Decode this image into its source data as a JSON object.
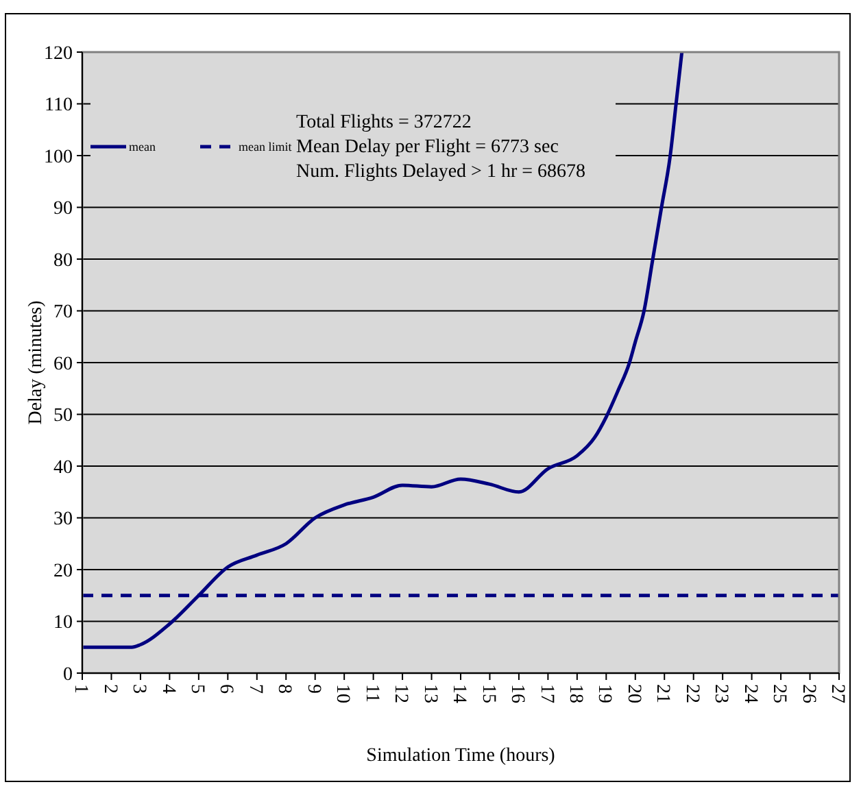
{
  "chart_data": {
    "type": "line",
    "xlabel": "Simulation Time (hours)",
    "ylabel": "Delay (minutes)",
    "xlim": [
      1,
      27
    ],
    "xticks": [
      1,
      2,
      3,
      4,
      5,
      6,
      7,
      8,
      9,
      10,
      11,
      12,
      13,
      14,
      15,
      16,
      17,
      18,
      19,
      20,
      21,
      22,
      23,
      24,
      25,
      26,
      27
    ],
    "ylim": [
      0,
      120
    ],
    "yticks": [
      0,
      10,
      20,
      30,
      40,
      50,
      60,
      70,
      80,
      90,
      100,
      110,
      120
    ],
    "grid": "y",
    "legend": "top left",
    "marker": "none",
    "series": [
      {
        "name": "mean",
        "color": "#000080",
        "line_style": "solid",
        "x": [
          1,
          2,
          2.7,
          3,
          4,
          5,
          6,
          7,
          8,
          9,
          10,
          11,
          12,
          13,
          14,
          15,
          16,
          17,
          18,
          18.6,
          19,
          19.4,
          19.8,
          20,
          20.3,
          20.6,
          20.9,
          21.2,
          21.4,
          21.6
        ],
        "values": [
          5,
          5,
          5,
          5.5,
          9.5,
          15,
          20.5,
          22.8,
          25,
          30,
          32.5,
          34,
          36.3,
          36,
          37.5,
          36.5,
          35,
          39.5,
          42,
          45.5,
          49.5,
          54.5,
          60,
          64,
          70,
          80,
          90,
          100,
          110,
          120
        ]
      },
      {
        "name": "mean limit",
        "color": "#000080",
        "line_style": "dashed",
        "x": [
          1,
          27
        ],
        "values": [
          15,
          15
        ]
      }
    ],
    "annotations": [
      "Total Flights = 372722",
      "Mean Delay per Flight = 6773 sec",
      "Num. Flights Delayed > 1 hr = 68678"
    ]
  }
}
